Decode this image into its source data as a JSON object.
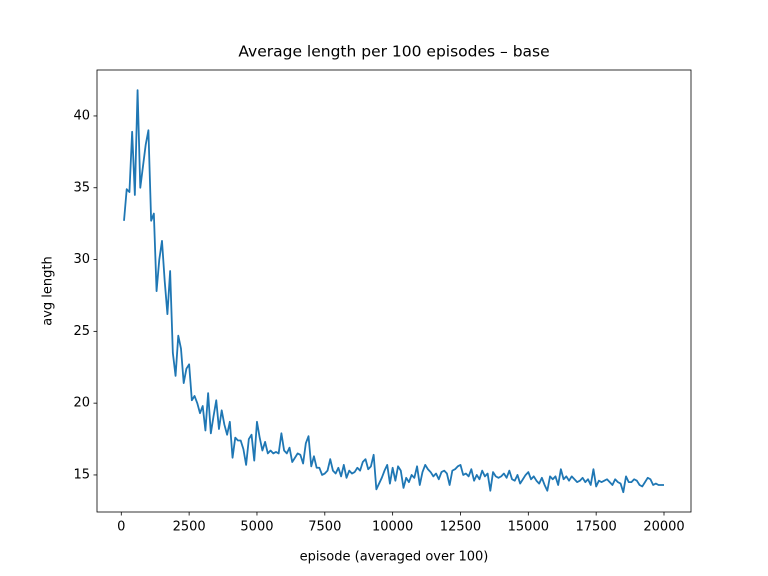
{
  "chart_data": {
    "type": "line",
    "title": "Average length per 100 episodes – base",
    "x_label": "episode (averaged over 100)",
    "y_label": "avg length",
    "color": "#1f77b4",
    "x": [
      100,
      200,
      300,
      400,
      500,
      600,
      700,
      800,
      900,
      1000,
      1100,
      1200,
      1300,
      1400,
      1500,
      1600,
      1700,
      1800,
      1900,
      2000,
      2100,
      2200,
      2300,
      2400,
      2500,
      2600,
      2700,
      2800,
      2900,
      3000,
      3100,
      3200,
      3300,
      3400,
      3500,
      3600,
      3700,
      3800,
      3900,
      4000,
      4100,
      4200,
      4300,
      4400,
      4500,
      4600,
      4700,
      4800,
      4900,
      5000,
      5100,
      5200,
      5300,
      5400,
      5500,
      5600,
      5700,
      5800,
      5900,
      6000,
      6100,
      6200,
      6300,
      6400,
      6500,
      6600,
      6700,
      6800,
      6900,
      7000,
      7100,
      7200,
      7300,
      7400,
      7500,
      7600,
      7700,
      7800,
      7900,
      8000,
      8100,
      8200,
      8300,
      8400,
      8500,
      8600,
      8700,
      8800,
      8900,
      9000,
      9100,
      9200,
      9300,
      9400,
      9500,
      9600,
      9700,
      9800,
      9900,
      10000,
      10100,
      10200,
      10300,
      10400,
      10500,
      10600,
      10700,
      10800,
      10900,
      11000,
      11100,
      11200,
      11300,
      11400,
      11500,
      11600,
      11700,
      11800,
      11900,
      12000,
      12100,
      12200,
      12300,
      12400,
      12500,
      12600,
      12700,
      12800,
      12900,
      13000,
      13100,
      13200,
      13300,
      13400,
      13500,
      13600,
      13700,
      13800,
      13900,
      14000,
      14100,
      14200,
      14300,
      14400,
      14500,
      14600,
      14700,
      14800,
      14900,
      15000,
      15100,
      15200,
      15300,
      15400,
      15500,
      15600,
      15700,
      15800,
      15900,
      16000,
      16100,
      16200,
      16300,
      16400,
      16500,
      16600,
      16700,
      16800,
      16900,
      17000,
      17100,
      17200,
      17300,
      17400,
      17500,
      17600,
      17700,
      17800,
      17900,
      18000,
      18100,
      18200,
      18300,
      18400,
      18500,
      18600,
      18700,
      18800,
      18900,
      19000,
      19100,
      19200,
      19300,
      19400,
      19500,
      19600,
      19700,
      19800,
      19900,
      20000
    ],
    "values": [
      32.7,
      34.9,
      34.7,
      38.9,
      34.5,
      41.8,
      35.0,
      36.5,
      38.0,
      39.0,
      32.7,
      33.2,
      27.8,
      30.0,
      31.3,
      28.5,
      26.2,
      29.2,
      23.5,
      21.9,
      24.7,
      23.8,
      21.4,
      22.4,
      22.7,
      20.2,
      20.5,
      20.0,
      19.3,
      19.8,
      18.1,
      20.7,
      17.9,
      19.1,
      20.2,
      18.2,
      19.5,
      18.5,
      17.8,
      18.7,
      16.2,
      17.6,
      17.4,
      17.4,
      16.8,
      15.7,
      17.5,
      17.8,
      16.0,
      18.7,
      17.6,
      16.7,
      17.3,
      16.5,
      16.7,
      16.5,
      16.6,
      16.5,
      17.9,
      16.7,
      16.5,
      16.9,
      15.9,
      16.2,
      16.5,
      16.4,
      15.8,
      17.2,
      17.7,
      15.6,
      16.3,
      15.5,
      15.5,
      15.0,
      15.1,
      15.3,
      16.1,
      15.3,
      15.1,
      15.5,
      14.9,
      15.7,
      14.8,
      15.3,
      15.1,
      15.2,
      15.5,
      15.3,
      15.9,
      16.1,
      15.4,
      15.6,
      16.4,
      14.0,
      14.4,
      14.8,
      15.3,
      15.7,
      14.4,
      15.5,
      14.6,
      15.6,
      15.3,
      14.1,
      14.8,
      14.5,
      15.0,
      14.8,
      15.6,
      14.3,
      15.2,
      15.7,
      15.4,
      15.2,
      14.9,
      15.1,
      14.7,
      15.2,
      15.3,
      15.1,
      14.3,
      15.3,
      15.4,
      15.6,
      15.7,
      15.0,
      15.1,
      14.9,
      15.4,
      14.6,
      15.0,
      14.7,
      15.3,
      14.9,
      15.1,
      13.9,
      15.2,
      14.9,
      14.8,
      14.9,
      15.1,
      14.8,
      15.3,
      14.7,
      14.6,
      15.0,
      14.4,
      14.7,
      15.0,
      15.2,
      14.7,
      14.9,
      14.6,
      14.4,
      14.8,
      14.3,
      13.9,
      14.9,
      14.7,
      14.9,
      14.3,
      15.4,
      14.7,
      14.9,
      14.6,
      14.9,
      14.7,
      14.5,
      14.6,
      14.8,
      14.5,
      14.7,
      14.3,
      15.4,
      14.2,
      14.6,
      14.5,
      14.6,
      14.7,
      14.5,
      14.3,
      14.7,
      14.5,
      14.4,
      13.8,
      14.9,
      14.5,
      14.5,
      14.7,
      14.6,
      14.3,
      14.2,
      14.5,
      14.8,
      14.7,
      14.3,
      14.4,
      14.3,
      14.3,
      14.3
    ],
    "xlim": [
      -895,
      20995
    ],
    "ylim": [
      12.42,
      43.2
    ],
    "xticks": [
      0,
      2500,
      5000,
      7500,
      10000,
      12500,
      15000,
      17500,
      20000
    ],
    "yticks": [
      15,
      20,
      25,
      30,
      35,
      40
    ]
  }
}
